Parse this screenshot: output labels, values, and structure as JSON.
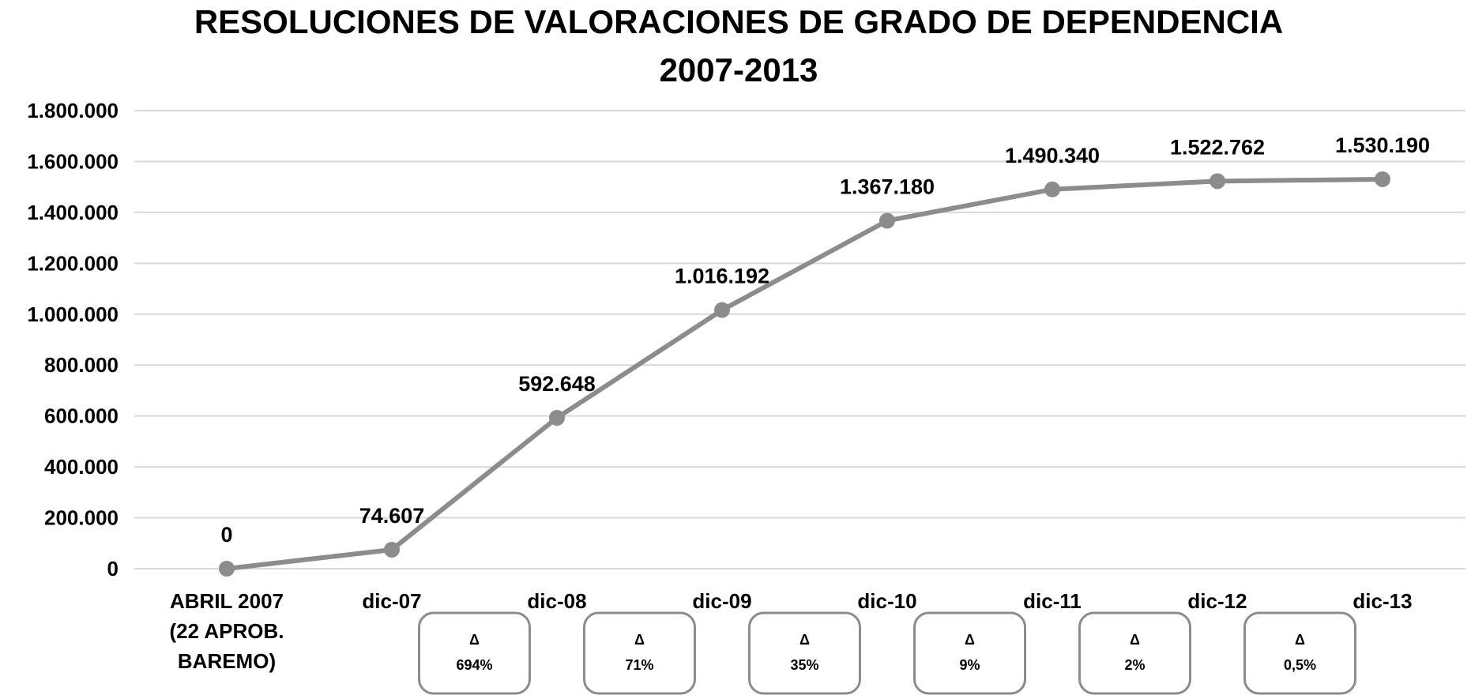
{
  "chart_data": {
    "type": "line",
    "title": "RESOLUCIONES DE VALORACIONES DE GRADO DE DEPENDENCIA",
    "subtitle": "2007-2013",
    "categories": [
      [
        "ABRIL 2007",
        "(22 APROB.",
        "BAREMO)"
      ],
      [
        "dic-07"
      ],
      [
        "dic-08"
      ],
      [
        "dic-09"
      ],
      [
        "dic-10"
      ],
      [
        "dic-11"
      ],
      [
        "dic-12"
      ],
      [
        "dic-13"
      ]
    ],
    "values": [
      0,
      74607,
      592648,
      1016192,
      1367180,
      1490340,
      1522762,
      1530190
    ],
    "data_labels": [
      "0",
      "74.607",
      "592.648",
      "1.016.192",
      "1.367.180",
      "1.490.340",
      "1.522.762",
      "1.530.190"
    ],
    "ylim": [
      0,
      1800000
    ],
    "y_ticks": [
      0,
      200000,
      400000,
      600000,
      800000,
      1000000,
      1200000,
      1400000,
      1600000,
      1800000
    ],
    "y_tick_labels": [
      "0",
      "200.000",
      "400.000",
      "600.000",
      "800.000",
      "1.000.000",
      "1.200.000",
      "1.400.000",
      "1.600.000",
      "1.800.000"
    ],
    "grid": true,
    "legend": "none",
    "colors": {
      "series": "#8c8c8c",
      "grid": "#d9d9d9",
      "text": "#000000"
    },
    "annotations": [
      {
        "symbol": "Δ",
        "text": "694%",
        "between": [
          1,
          2
        ]
      },
      {
        "symbol": "Δ",
        "text": "71%",
        "between": [
          2,
          3
        ]
      },
      {
        "symbol": "Δ",
        "text": "35%",
        "between": [
          3,
          4
        ]
      },
      {
        "symbol": "Δ",
        "text": "9%",
        "between": [
          4,
          5
        ]
      },
      {
        "symbol": "Δ",
        "text": "2%",
        "between": [
          5,
          6
        ]
      },
      {
        "symbol": "Δ",
        "text": "0,5%",
        "between": [
          6,
          7
        ]
      }
    ]
  }
}
